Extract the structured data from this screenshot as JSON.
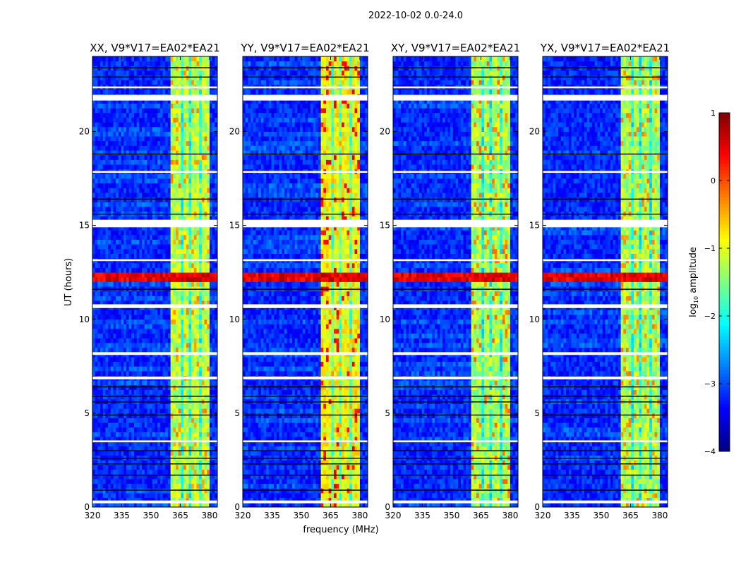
{
  "chart_data": {
    "type": "heatmap",
    "suptitle": "2022-10-02 0.0-24.0",
    "xlabel": "frequency (MHz)",
    "ylabel": "UT (hours)",
    "xlim": [
      320,
      384
    ],
    "ylim": [
      0,
      24
    ],
    "xticks": [
      "320",
      "335",
      "350",
      "365",
      "380"
    ],
    "xtick_values": [
      320,
      335,
      350,
      365,
      380
    ],
    "yticks": [
      "0",
      "5",
      "10",
      "15",
      "20"
    ],
    "ytick_values": [
      0,
      5,
      10,
      15,
      20
    ],
    "colorbar": {
      "label": "log10 amplitude",
      "label_main": "log",
      "label_sub": "10",
      "label_tail": " amplitude",
      "clim": [
        -4,
        1
      ],
      "ticks": [
        "1",
        "0",
        "−1",
        "−2",
        "−3",
        "−4"
      ],
      "tick_values": [
        1,
        0,
        -1,
        -2,
        -3,
        -4
      ],
      "colormap": "jet"
    },
    "background_level": -3.2,
    "rfi_band_mhz": [
      360.5,
      380
    ],
    "band_gaps_mhz": [
      365.5,
      370.5,
      375.5
    ],
    "flagged_hours": [
      [
        21.65,
        21.95
      ],
      [
        14.9,
        15.3
      ],
      [
        10.6,
        10.8
      ],
      [
        8.1,
        8.25
      ],
      [
        6.8,
        6.95
      ],
      [
        3.45,
        3.55
      ],
      [
        0.2,
        0.35
      ],
      [
        17.8,
        17.9
      ],
      [
        13.1,
        13.2
      ],
      [
        22.3,
        22.4
      ]
    ],
    "dark_hours": [
      0.9,
      1.7,
      2.3,
      2.6,
      3.0,
      4.9,
      5.6,
      5.9,
      6.4,
      11.6,
      15.6,
      16.4,
      18.8,
      22.9,
      23.4
    ],
    "strong_rfi_hours": [
      12.0,
      12.5
    ],
    "panels": [
      {
        "title": "XX, V9*V17=EA02*EA21",
        "band_level": -1.2,
        "hot_level": -0.5
      },
      {
        "title": "YY, V9*V17=EA02*EA21",
        "band_level": -0.9,
        "hot_level": 0.2
      },
      {
        "title": "XY, V9*V17=EA02*EA21",
        "band_level": -1.3,
        "hot_level": -0.4
      },
      {
        "title": "YX, V9*V17=EA02*EA21",
        "band_level": -1.3,
        "hot_level": -0.5
      }
    ]
  }
}
